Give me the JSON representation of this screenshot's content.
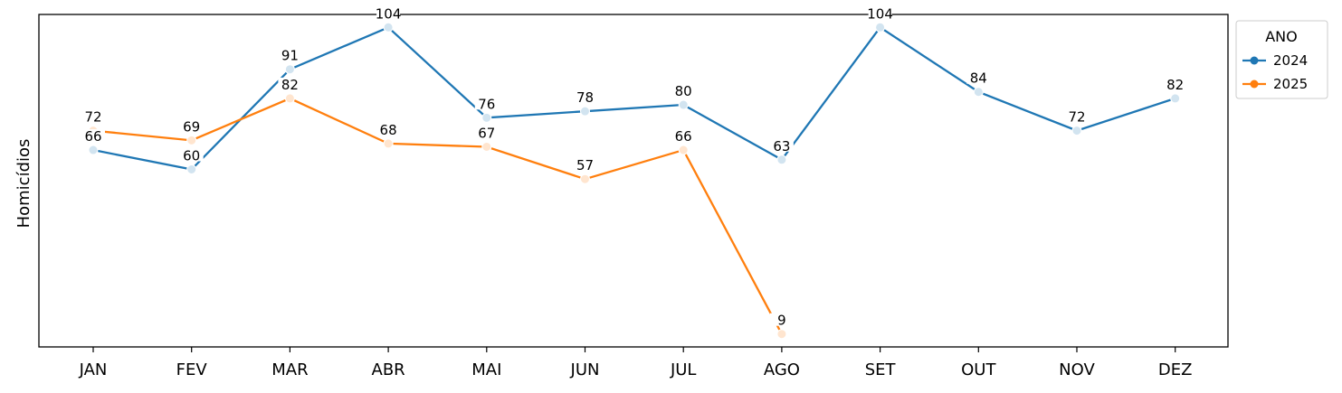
{
  "chart_data": {
    "type": "line",
    "categories": [
      "JAN",
      "FEV",
      "MAR",
      "ABR",
      "MAI",
      "JUN",
      "JUL",
      "AGO",
      "SET",
      "OUT",
      "NOV",
      "DEZ"
    ],
    "ylabel": "Homicídios",
    "xlabel": "",
    "ylim": [
      5,
      108
    ],
    "grid": false,
    "legend": {
      "title": "ANO",
      "placement": "top-right, outside"
    },
    "series": [
      {
        "name": "2024",
        "color": "#1f77b4",
        "values": [
          66,
          60,
          91,
          104,
          76,
          78,
          80,
          63,
          104,
          84,
          72,
          82
        ]
      },
      {
        "name": "2025",
        "color": "#ff7f0e",
        "values": [
          72,
          69,
          82,
          68,
          67,
          57,
          66,
          9,
          null,
          null,
          null,
          null
        ]
      }
    ]
  }
}
